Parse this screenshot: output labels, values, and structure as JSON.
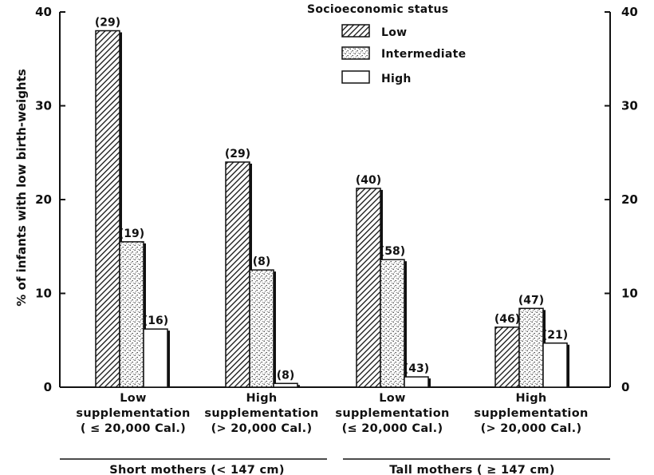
{
  "chart_data": {
    "type": "bar",
    "ylabel": "% of infants with low birth-weights",
    "ylim": [
      0,
      40
    ],
    "yticks": [
      "0",
      "10",
      "20",
      "30",
      "40"
    ],
    "categories": [
      {
        "line1": "Low",
        "line2": "supplementation",
        "line3": "( ≤ 20,000 Cal.)"
      },
      {
        "line1": "High",
        "line2": "supplementation",
        "line3": "(> 20,000 Cal.)"
      },
      {
        "line1": "Low",
        "line2": "supplementation",
        "line3": "(≤ 20,000 Cal.)"
      },
      {
        "line1": "High",
        "line2": "supplementation",
        "line3": "(> 20,000 Cal.)"
      }
    ],
    "groups": [
      {
        "label": "Short mothers  (< 147 cm)"
      },
      {
        "label": "Tall mothers ( ≥ 147 cm)"
      }
    ],
    "legend": {
      "title": "Socioeconomic status",
      "position": "top-center"
    },
    "series": [
      {
        "name": "Low",
        "pattern": "hatch",
        "values": [
          38.0,
          24.0,
          21.2,
          6.4
        ],
        "labels": [
          "(29)",
          "(29)",
          "(40)",
          "(46)"
        ]
      },
      {
        "name": "Intermediate",
        "pattern": "dots",
        "values": [
          15.5,
          12.5,
          13.6,
          8.4
        ],
        "labels": [
          "(19)",
          "(8)",
          "(58)",
          "(47)"
        ]
      },
      {
        "name": "High",
        "pattern": "empty",
        "values": [
          6.2,
          0.4,
          1.1,
          4.7
        ],
        "labels": [
          "(16)",
          "(8)",
          "(43)",
          "(21)"
        ]
      }
    ]
  }
}
